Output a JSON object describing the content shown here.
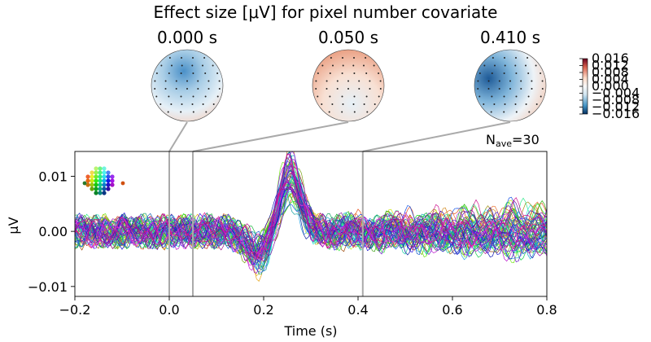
{
  "figure": {
    "title": "Effect size [μV] for pixel number covariate",
    "nave_label": "N",
    "nave_sub": "ave",
    "nave_value": "=30"
  },
  "topomaps": [
    {
      "time_label": "0.000 s",
      "time": 0.0
    },
    {
      "time_label": "0.050 s",
      "time": 0.05
    },
    {
      "time_label": "0.410 s",
      "time": 0.41
    }
  ],
  "colorbar": {
    "ticks": [
      "0.016",
      "0.012",
      "0.008",
      "0.004",
      "0.000",
      "−0.004",
      "−0.008",
      "−0.012",
      "−0.016"
    ],
    "range": [
      -0.016,
      0.016
    ],
    "cmap": "RdBu_r"
  },
  "chart_data": {
    "type": "line",
    "title": "Effect size [μV] for pixel number covariate",
    "xlabel": "Time (s)",
    "ylabel": "μV",
    "xlim": [
      -0.2,
      0.8
    ],
    "ylim": [
      -0.0118,
      0.0145
    ],
    "xticks": [
      "−0.2",
      "0.0",
      "0.2",
      "0.4",
      "0.6",
      "0.8"
    ],
    "yticks": [
      "0.01",
      "0.00",
      "−0.01"
    ],
    "n_channels": 64,
    "highlight_times": [
      0.0,
      0.05,
      0.41
    ],
    "grid": false,
    "legend": "sensor layout inset top-left",
    "channel_series_note": "64 overlaid per-channel butterfly traces, colored by sensor position",
    "peak": {
      "time": 0.25,
      "max_value": 0.0133
    },
    "trough": {
      "time": 0.2,
      "min_value": -0.0105
    }
  }
}
